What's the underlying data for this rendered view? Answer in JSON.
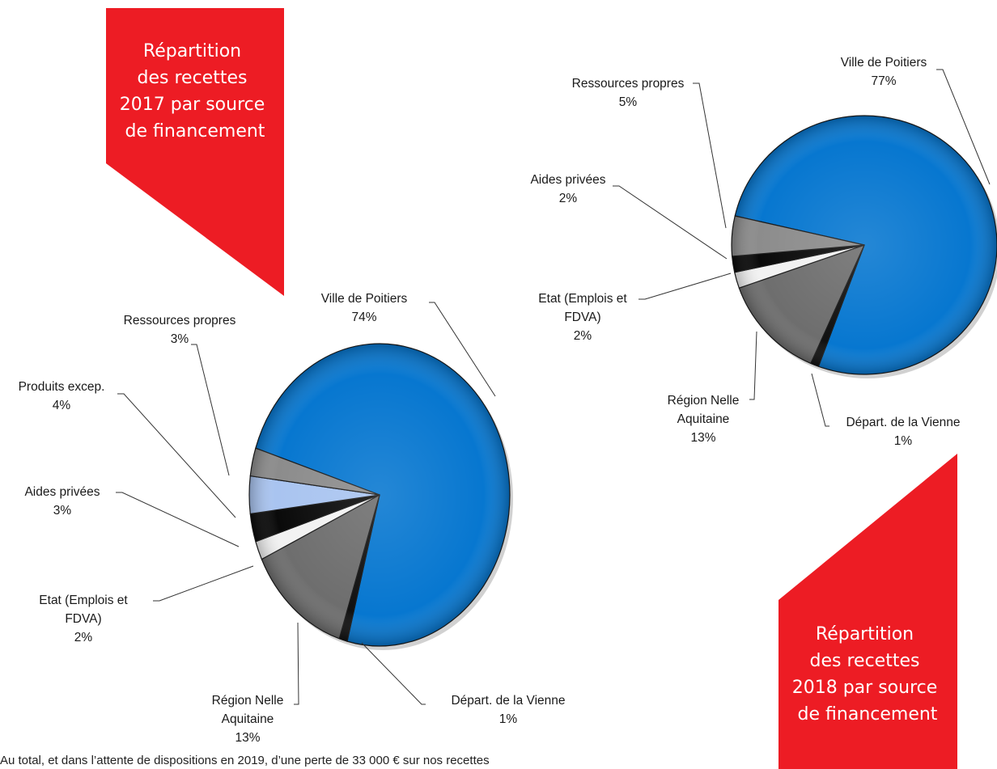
{
  "chart_data": [
    {
      "type": "pie",
      "title_lines": [
        "Répartition",
        "des recettes",
        "2017 par source",
        "de financement"
      ],
      "slices": [
        {
          "key": "ville",
          "label_lines": [
            "Ville de Poitiers",
            "74%"
          ],
          "value": 74,
          "color": "#0777d0"
        },
        {
          "key": "depart",
          "label_lines": [
            "Départ. de la Vienne",
            "1%"
          ],
          "value": 1,
          "color": "#111111"
        },
        {
          "key": "region",
          "label_lines": [
            "Région Nelle",
            "Aquitaine",
            "13%"
          ],
          "value": 13,
          "color": "#6e6e6e"
        },
        {
          "key": "etat",
          "label_lines": [
            "Etat (Emplois et",
            "FDVA)",
            "2%"
          ],
          "value": 2,
          "color": "#f2f2f2"
        },
        {
          "key": "aides",
          "label_lines": [
            "Aides privées",
            "3%"
          ],
          "value": 3,
          "color": "#0a0a0a"
        },
        {
          "key": "produits",
          "label_lines": [
            "Produits excep.",
            "4%"
          ],
          "value": 4,
          "color": "#a9c4f0"
        },
        {
          "key": "ressources",
          "label_lines": [
            "Ressources propres",
            "3%"
          ],
          "value": 3,
          "color": "#8c8c8c"
        }
      ]
    },
    {
      "type": "pie",
      "title_lines": [
        "Répartition",
        "des recettes",
        "2018 par source",
        "de financement"
      ],
      "slices": [
        {
          "key": "ville",
          "label_lines": [
            "Ville de Poitiers",
            "77%"
          ],
          "value": 77,
          "color": "#0777d0"
        },
        {
          "key": "depart",
          "label_lines": [
            "Départ. de la Vienne",
            "1%"
          ],
          "value": 1,
          "color": "#111111"
        },
        {
          "key": "region",
          "label_lines": [
            "Région Nelle",
            "Aquitaine",
            "13%"
          ],
          "value": 13,
          "color": "#6e6e6e"
        },
        {
          "key": "etat",
          "label_lines": [
            "Etat (Emplois et",
            "FDVA)",
            "2%"
          ],
          "value": 2,
          "color": "#f2f2f2"
        },
        {
          "key": "aides",
          "label_lines": [
            "Aides privées",
            "2%"
          ],
          "value": 2,
          "color": "#0a0a0a"
        },
        {
          "key": "ressources",
          "label_lines": [
            "Ressources propres",
            "5%"
          ],
          "value": 5,
          "color": "#8c8c8c"
        }
      ]
    }
  ],
  "colors": {
    "banner": "#ed1c24",
    "outline": "#1a1a1a"
  },
  "footer": {
    "text": "Au total, et dans l’attente de dispositions en 2019, d’une perte de 33 000 € sur nos recettes"
  }
}
